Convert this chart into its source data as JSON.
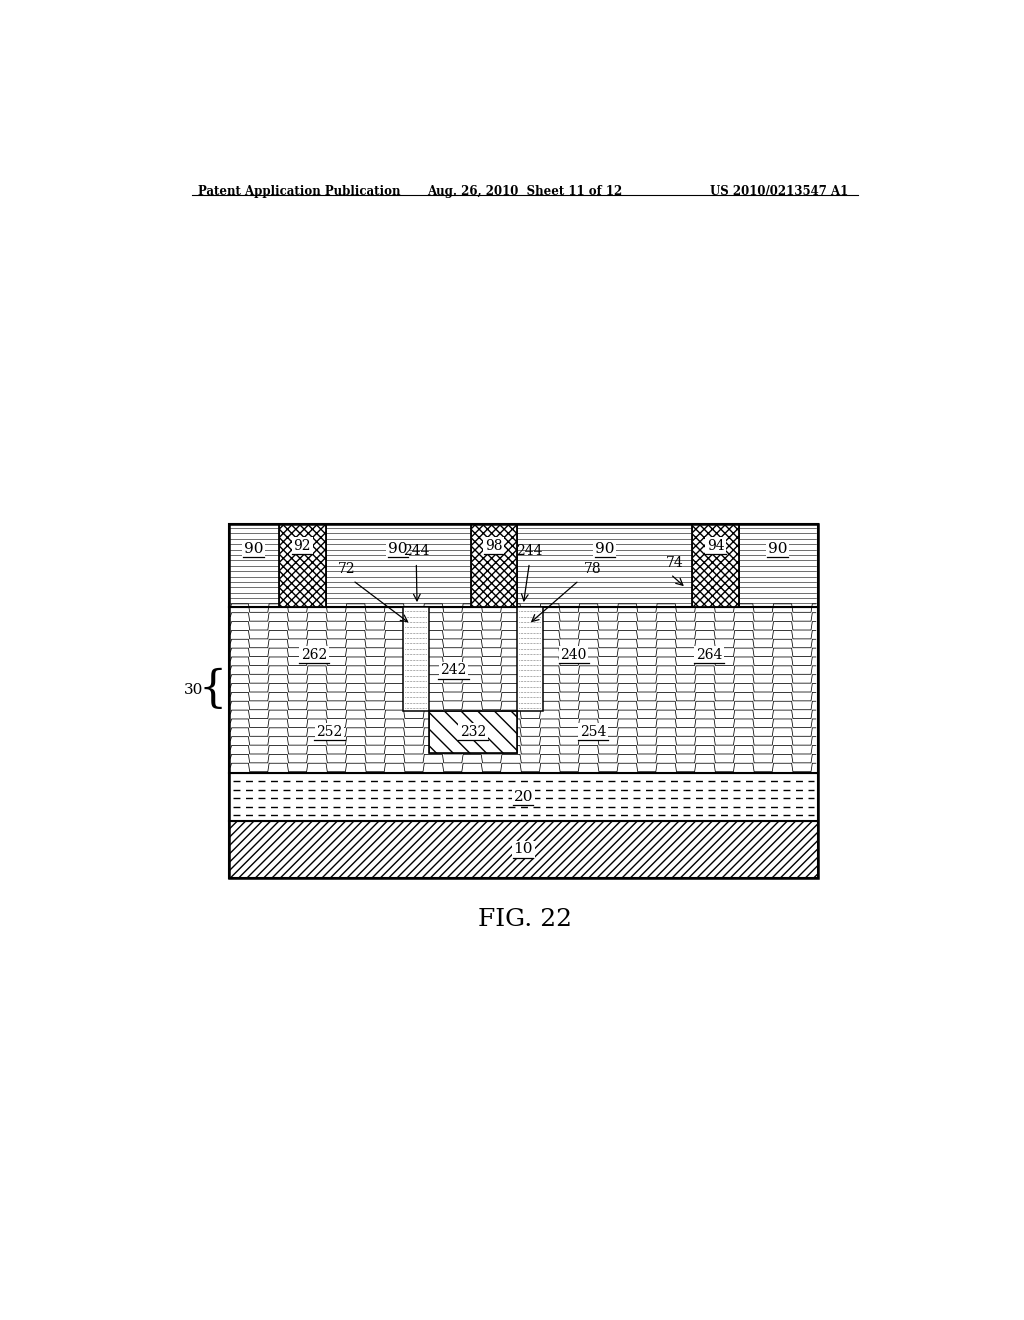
{
  "header_left": "Patent Application Publication",
  "header_mid": "Aug. 26, 2010  Sheet 11 of 12",
  "header_right": "US 2010/0213547 A1",
  "fig_label": "FIG. 22",
  "bg_color": "#ffffff"
}
